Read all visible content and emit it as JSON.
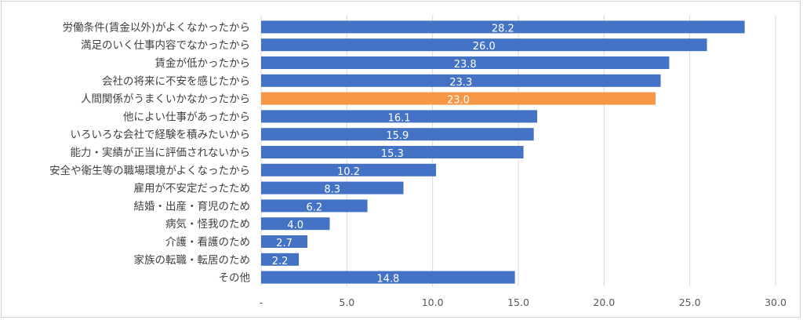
{
  "chart_data": {
    "type": "bar",
    "orientation": "horizontal",
    "categories": [
      "労働条件(賃金以外)がよくなかったから",
      "満足のいく仕事内容でなかったから",
      "賃金が低かったから",
      "会社の将来に不安を感じたから",
      "人間関係がうまくいかなかったから",
      "他によい仕事があったから",
      "いろいろな会社で経験を積みたいから",
      "能力・実績が正当に評価されないから",
      "安全や衛生等の職場環境がよくなったから",
      "雇用が不安定だったため",
      "結婚・出産・育児のため",
      "病気・怪我のため",
      "介護・看護のため",
      "家族の転職・転居のため",
      "その他"
    ],
    "values": [
      28.2,
      26.0,
      23.8,
      23.3,
      23.0,
      16.1,
      15.9,
      15.3,
      10.2,
      8.3,
      6.2,
      4.0,
      2.7,
      2.2,
      14.8
    ],
    "value_labels": [
      "28.2",
      "26.0",
      "23.8",
      "23.3",
      "23.0",
      "16.1",
      "15.9",
      "15.3",
      "10.2",
      "8.3",
      "6.2",
      "4.0",
      "2.7",
      "2.2",
      "14.8"
    ],
    "highlight_index": 4,
    "xlim": [
      0,
      30
    ],
    "xticks": [
      0,
      5,
      10,
      15,
      20,
      25,
      30
    ],
    "xtick_labels": [
      "-",
      "5.0",
      "10.0",
      "15.0",
      "20.0",
      "25.0",
      "30.0"
    ],
    "grid": "vertical",
    "legend": "none",
    "colors": {
      "bar": "#4472c4",
      "highlight": "#f79646",
      "grid": "#d9d9d9",
      "category_text": "#404040",
      "value_text": "#ffffff",
      "tick_text": "#595959"
    }
  }
}
